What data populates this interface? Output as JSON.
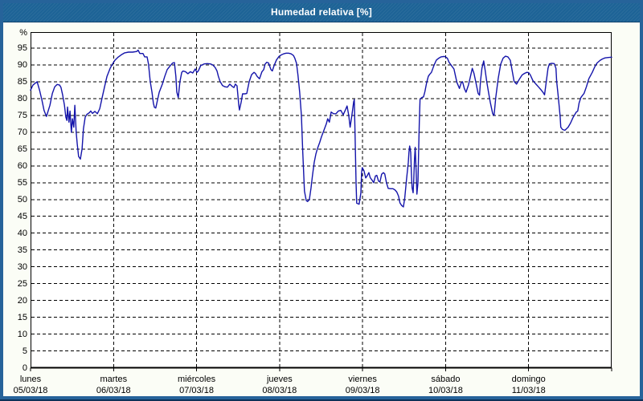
{
  "window": {
    "title": "Humedad relativa [%]"
  },
  "colors": {
    "frame": "#26639a",
    "frame_bottom_edge": "#0c3158",
    "titlebar_bg": "#1d6396",
    "title_text": "#ffffff",
    "margin_bg": "#fbfdf6",
    "plot_bg": "#ffffff",
    "grid": "#000000",
    "line": "#1414aa",
    "label_text": "#000000"
  },
  "chart_data": {
    "type": "line",
    "title": "Humedad relativa [%]",
    "ylabel": "%",
    "xlabel": "",
    "ylim": [
      0,
      99.5
    ],
    "y_ticks": [
      0,
      5,
      10,
      15,
      20,
      25,
      30,
      35,
      40,
      45,
      50,
      55,
      60,
      65,
      70,
      75,
      80,
      85,
      90,
      95
    ],
    "grid": "dashed-black",
    "legend_position": "none",
    "x_unit": "hours since lunes 05/03/18 00:00",
    "x_range_hours": [
      0,
      168
    ],
    "days": [
      {
        "name": "lunes",
        "date": "05/03/18"
      },
      {
        "name": "martes",
        "date": "06/03/18"
      },
      {
        "name": "miércoles",
        "date": "07/03/18"
      },
      {
        "name": "jueves",
        "date": "08/03/18"
      },
      {
        "name": "viernes",
        "date": "09/03/18"
      },
      {
        "name": "sábado",
        "date": "10/03/18"
      },
      {
        "name": "domingo",
        "date": "11/03/18"
      }
    ],
    "series": [
      {
        "name": "Humedad relativa",
        "color": "#1414aa",
        "points": [
          [
            0,
            82.5
          ],
          [
            0.7,
            84
          ],
          [
            1.4,
            84.6
          ],
          [
            1.9,
            85
          ],
          [
            2.6,
            82.5
          ],
          [
            3.3,
            79.5
          ],
          [
            3.9,
            76.5
          ],
          [
            4.6,
            74.7
          ],
          [
            5.6,
            78
          ],
          [
            6.3,
            81.5
          ],
          [
            7,
            83.5
          ],
          [
            7.7,
            84.2
          ],
          [
            8.4,
            84
          ],
          [
            8.8,
            83.3
          ],
          [
            9.3,
            81
          ],
          [
            9.8,
            78
          ],
          [
            10.2,
            74.5
          ],
          [
            10.5,
            73.5
          ],
          [
            10.7,
            77.5
          ],
          [
            11.1,
            73
          ],
          [
            11.4,
            76.3
          ],
          [
            11.8,
            70
          ],
          [
            12.1,
            74
          ],
          [
            12.5,
            71.5
          ],
          [
            12.8,
            78
          ],
          [
            13.2,
            70
          ],
          [
            13.5,
            66.5
          ],
          [
            13.9,
            62.8
          ],
          [
            14.4,
            62
          ],
          [
            14.9,
            65
          ],
          [
            15.3,
            71
          ],
          [
            15.8,
            74.5
          ],
          [
            16.3,
            75.3
          ],
          [
            17,
            75.8
          ],
          [
            17.4,
            76.3
          ],
          [
            17.9,
            75.6
          ],
          [
            18.6,
            76.2
          ],
          [
            19.3,
            75.5
          ],
          [
            20,
            77
          ],
          [
            20.7,
            80.3
          ],
          [
            21.4,
            83.5
          ],
          [
            22.1,
            86.6
          ],
          [
            23,
            89
          ],
          [
            23.7,
            90.3
          ],
          [
            24.4,
            91.4
          ],
          [
            25.3,
            92.3
          ],
          [
            26.2,
            93
          ],
          [
            27.2,
            93.6
          ],
          [
            28.3,
            93.8
          ],
          [
            29.5,
            93.8
          ],
          [
            30.7,
            94
          ],
          [
            31.1,
            94.4
          ],
          [
            31.6,
            93.4
          ],
          [
            32.5,
            93.4
          ],
          [
            33,
            92.4
          ],
          [
            33.7,
            92.4
          ],
          [
            34.1,
            90.2
          ],
          [
            34.6,
            85.1
          ],
          [
            35.1,
            81.9
          ],
          [
            35.5,
            78.7
          ],
          [
            35.8,
            77.4
          ],
          [
            36.2,
            77.2
          ],
          [
            36.7,
            79.5
          ],
          [
            37.2,
            81.9
          ],
          [
            38.1,
            84.3
          ],
          [
            38.8,
            86.6
          ],
          [
            39.5,
            88.6
          ],
          [
            40.4,
            89.8
          ],
          [
            41.1,
            90.6
          ],
          [
            41.6,
            90.7
          ],
          [
            42,
            86.6
          ],
          [
            42.3,
            81.9
          ],
          [
            42.7,
            80.3
          ],
          [
            43.2,
            85.1
          ],
          [
            43.7,
            87.8
          ],
          [
            44.1,
            88.2
          ],
          [
            44.8,
            88
          ],
          [
            45.5,
            87.4
          ],
          [
            46.2,
            88
          ],
          [
            46.9,
            87.6
          ],
          [
            47.6,
            88.8
          ],
          [
            48.1,
            87.8
          ],
          [
            48.5,
            88.2
          ],
          [
            49.2,
            89.8
          ],
          [
            50.2,
            90.3
          ],
          [
            51.1,
            90.4
          ],
          [
            52,
            90.3
          ],
          [
            52.7,
            90
          ],
          [
            53.4,
            89.2
          ],
          [
            53.9,
            88.2
          ],
          [
            54.3,
            86.6
          ],
          [
            54.8,
            85.1
          ],
          [
            55.5,
            83.9
          ],
          [
            56.2,
            83.5
          ],
          [
            56.9,
            83.4
          ],
          [
            57.6,
            84.3
          ],
          [
            58.3,
            83.6
          ],
          [
            58.8,
            83.3
          ],
          [
            59.2,
            84.3
          ],
          [
            59.7,
            83.8
          ],
          [
            60.2,
            78
          ],
          [
            60.4,
            76.6
          ],
          [
            60.9,
            79
          ],
          [
            61.3,
            81.4
          ],
          [
            62,
            81.4
          ],
          [
            62.5,
            81.5
          ],
          [
            63.2,
            85
          ],
          [
            63.9,
            87.1
          ],
          [
            64.6,
            87.8
          ],
          [
            65,
            87.5
          ],
          [
            65.5,
            86.6
          ],
          [
            66.2,
            85.9
          ],
          [
            66.9,
            88
          ],
          [
            67.4,
            88.6
          ],
          [
            67.8,
            90.2
          ],
          [
            68.3,
            90.8
          ],
          [
            68.8,
            90.6
          ],
          [
            69.5,
            88.6
          ],
          [
            69.9,
            88.2
          ],
          [
            70.4,
            89.8
          ],
          [
            71.1,
            91.5
          ],
          [
            71.8,
            92.5
          ],
          [
            72.5,
            93
          ],
          [
            73.2,
            93.3
          ],
          [
            73.9,
            93.5
          ],
          [
            74.6,
            93.5
          ],
          [
            75.3,
            93.3
          ],
          [
            76,
            92.8
          ],
          [
            76.4,
            92
          ],
          [
            76.9,
            90.5
          ],
          [
            77.3,
            87
          ],
          [
            77.8,
            82
          ],
          [
            78.3,
            75
          ],
          [
            78.7,
            64
          ],
          [
            79.2,
            52.5
          ],
          [
            79.7,
            49.7
          ],
          [
            80.1,
            49.4
          ],
          [
            80.6,
            50
          ],
          [
            81.1,
            53.5
          ],
          [
            81.5,
            57
          ],
          [
            82,
            61
          ],
          [
            82.5,
            63.5
          ],
          [
            82.9,
            65
          ],
          [
            83.6,
            67
          ],
          [
            84.1,
            68.6
          ],
          [
            84.8,
            70.5
          ],
          [
            85.5,
            72.5
          ],
          [
            85.9,
            74
          ],
          [
            86.4,
            73
          ],
          [
            86.9,
            76
          ],
          [
            87.6,
            75.5
          ],
          [
            88.3,
            75.5
          ],
          [
            89,
            76.3
          ],
          [
            89.7,
            76.5
          ],
          [
            90.4,
            75.2
          ],
          [
            91.1,
            76.8
          ],
          [
            91.5,
            77.8
          ],
          [
            92,
            75
          ],
          [
            92.4,
            71.5
          ],
          [
            92.9,
            75
          ],
          [
            93.4,
            79
          ],
          [
            93.6,
            79.7
          ],
          [
            93.8,
            70
          ],
          [
            94.1,
            55
          ],
          [
            94.3,
            48.9
          ],
          [
            95,
            48.6
          ],
          [
            95.5,
            52
          ],
          [
            95.7,
            58
          ],
          [
            95.9,
            59.5
          ],
          [
            96.4,
            58.5
          ],
          [
            96.9,
            56.4
          ],
          [
            97.3,
            57
          ],
          [
            97.8,
            58
          ],
          [
            98.2,
            56.5
          ],
          [
            98.7,
            55.8
          ],
          [
            99.2,
            55
          ],
          [
            99.7,
            57
          ],
          [
            100.1,
            57.2
          ],
          [
            100.6,
            55.5
          ],
          [
            101,
            55.2
          ],
          [
            101.5,
            57.5
          ],
          [
            102,
            58
          ],
          [
            102.4,
            57.6
          ],
          [
            102.9,
            55
          ],
          [
            103.4,
            53.3
          ],
          [
            104.1,
            53.2
          ],
          [
            104.8,
            53.2
          ],
          [
            105.4,
            52.8
          ],
          [
            105.9,
            52.2
          ],
          [
            106.4,
            51
          ],
          [
            106.8,
            49
          ],
          [
            107.3,
            48.2
          ],
          [
            107.8,
            47.8
          ],
          [
            108.2,
            50.5
          ],
          [
            108.7,
            56
          ],
          [
            109.2,
            61
          ],
          [
            109.4,
            64
          ],
          [
            109.6,
            65.9
          ],
          [
            109.9,
            64
          ],
          [
            110.1,
            58
          ],
          [
            110.3,
            53.5
          ],
          [
            110.6,
            52
          ],
          [
            110.8,
            56
          ],
          [
            111,
            62
          ],
          [
            111.2,
            65.5
          ],
          [
            111.5,
            58
          ],
          [
            111.7,
            51.6
          ],
          [
            112,
            55
          ],
          [
            112.2,
            65
          ],
          [
            112.4,
            73
          ],
          [
            112.6,
            79.8
          ],
          [
            113.1,
            80.3
          ],
          [
            113.6,
            80.5
          ],
          [
            114,
            82
          ],
          [
            114.5,
            84.7
          ],
          [
            115,
            86.6
          ],
          [
            115.4,
            87.2
          ],
          [
            115.9,
            87.8
          ],
          [
            116.6,
            89.8
          ],
          [
            117.3,
            91.4
          ],
          [
            118,
            92
          ],
          [
            118.7,
            92.4
          ],
          [
            119.4,
            92.5
          ],
          [
            119.8,
            92.5
          ],
          [
            120.5,
            92
          ],
          [
            121,
            90.8
          ],
          [
            121.7,
            89.8
          ],
          [
            122.4,
            88.8
          ],
          [
            122.9,
            86.5
          ],
          [
            123.3,
            84.7
          ],
          [
            123.8,
            83.5
          ],
          [
            124,
            83
          ],
          [
            124.5,
            84.7
          ],
          [
            124.9,
            85
          ],
          [
            125.4,
            83
          ],
          [
            125.9,
            81.9
          ],
          [
            126.6,
            84
          ],
          [
            127,
            85.8
          ],
          [
            127.7,
            89
          ],
          [
            128.2,
            87.5
          ],
          [
            128.7,
            85
          ],
          [
            129.4,
            81.5
          ],
          [
            129.8,
            81
          ],
          [
            130.1,
            85.4
          ],
          [
            130.5,
            89
          ],
          [
            131,
            91.2
          ],
          [
            131.4,
            88.6
          ],
          [
            131.9,
            85
          ],
          [
            132.4,
            81.9
          ],
          [
            132.9,
            79
          ],
          [
            133.6,
            75.5
          ],
          [
            134,
            75
          ],
          [
            134.5,
            80.3
          ],
          [
            135.2,
            85.9
          ],
          [
            135.9,
            90.2
          ],
          [
            136.6,
            92
          ],
          [
            137.3,
            92.6
          ],
          [
            138,
            92.4
          ],
          [
            138.7,
            91.4
          ],
          [
            139.4,
            87.4
          ],
          [
            139.8,
            85.1
          ],
          [
            140.5,
            84.3
          ],
          [
            141.4,
            85.9
          ],
          [
            142.1,
            87
          ],
          [
            142.8,
            87.5
          ],
          [
            143.5,
            87.8
          ],
          [
            144,
            87.7
          ],
          [
            144.5,
            87
          ],
          [
            145.2,
            85.4
          ],
          [
            146.1,
            84.3
          ],
          [
            146.8,
            83.5
          ],
          [
            147.5,
            82.7
          ],
          [
            148.2,
            81.8
          ],
          [
            148.6,
            81.1
          ],
          [
            149.1,
            85.1
          ],
          [
            149.6,
            89
          ],
          [
            150,
            90.3
          ],
          [
            150.7,
            90.5
          ],
          [
            151.4,
            90.4
          ],
          [
            151.9,
            89
          ],
          [
            152.1,
            85.1
          ],
          [
            152.6,
            80.3
          ],
          [
            153.1,
            74.7
          ],
          [
            153.3,
            71.5
          ],
          [
            153.8,
            70.8
          ],
          [
            154.5,
            70.6
          ],
          [
            155.4,
            71.5
          ],
          [
            156.1,
            72.7
          ],
          [
            156.8,
            74.3
          ],
          [
            157.7,
            75.9
          ],
          [
            158.2,
            76.3
          ],
          [
            158.6,
            78.7
          ],
          [
            159.1,
            80.3
          ],
          [
            159.6,
            81
          ],
          [
            160,
            81.5
          ],
          [
            160.7,
            83.5
          ],
          [
            161.4,
            85.9
          ],
          [
            162.4,
            87.8
          ],
          [
            163.1,
            89.4
          ],
          [
            163.8,
            90.6
          ],
          [
            164.7,
            91.4
          ],
          [
            165.4,
            91.8
          ],
          [
            166.1,
            92.1
          ],
          [
            167,
            92.2
          ],
          [
            168,
            92.3
          ]
        ]
      }
    ]
  }
}
